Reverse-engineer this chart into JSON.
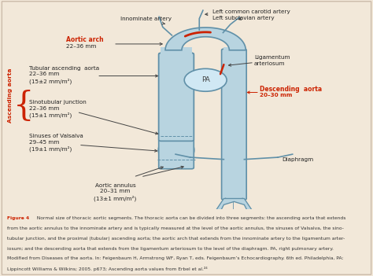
{
  "bg_color": "#f2e8d9",
  "diagram_bg": "#f2e8d9",
  "caption_bg": "#ffffff",
  "aorta_color": "#b8d4e0",
  "aorta_edge": "#6090a8",
  "pa_color": "#d0e8f4",
  "red_color": "#cc2200",
  "arrow_color": "#444444",
  "label_color": "#222222",
  "figure_caption_bold": "Figure 4",
  "figure_caption_rest": "  Normal size of thoracic aortic segments. The thoracic aorta can be divided into three segments: the ascending aorta that extends from the aortic annulus to the innominate artery and is typically measured at the level of the aortic annulus, the sinuses of Valsalva, the sino-tubular junction, and the proximal (tubular) ascending aorta; the aortic arch that extends from the innominate artery to the ligamentum arter-iosum; and the descending aorta that extends from the ligamentum arteriosum to the level of the diaphragm. PA, right pulmonary artery. Modified from Diseases of the aorta. In: Feigenbaum H, Armstrong WF, Ryan T, eds. Feigenbaum’s Echocardiography. 6th ed. Philadelphia, PA: Lippincott Williams & Wilkins; 2005. p673; Ascending aorta values from Erbel et al.",
  "labels": {
    "innominate": "Innominate artery",
    "left_carotid": "Left common carotid artery",
    "left_subclavian": "Left subclavian artery",
    "aortic_arch_line1": "Aortic arch",
    "aortic_arch_line2": "22–36 mm",
    "tubular_asc": "Tubular ascending  aorta\n22–36 mm\n(15±2 mm/m²)",
    "sinotubular": "Sinotubular junction\n22–36 mm\n(15±1 mm/m²)",
    "sinuses": "Sinuses of Valsalva\n29–45 mm\n(19±1 mm/m²)",
    "annulus": "Aortic annulus\n20–31 mm\n(13±1 mm/m²)",
    "descending_line1": "Descending  aorta",
    "descending_line2": "20–30 mm",
    "ligamentum": "Ligamentum\narteriosum",
    "diaphragm": "Diaphragm",
    "ascending_aorta": "Ascending aorta",
    "PA": "PA"
  }
}
